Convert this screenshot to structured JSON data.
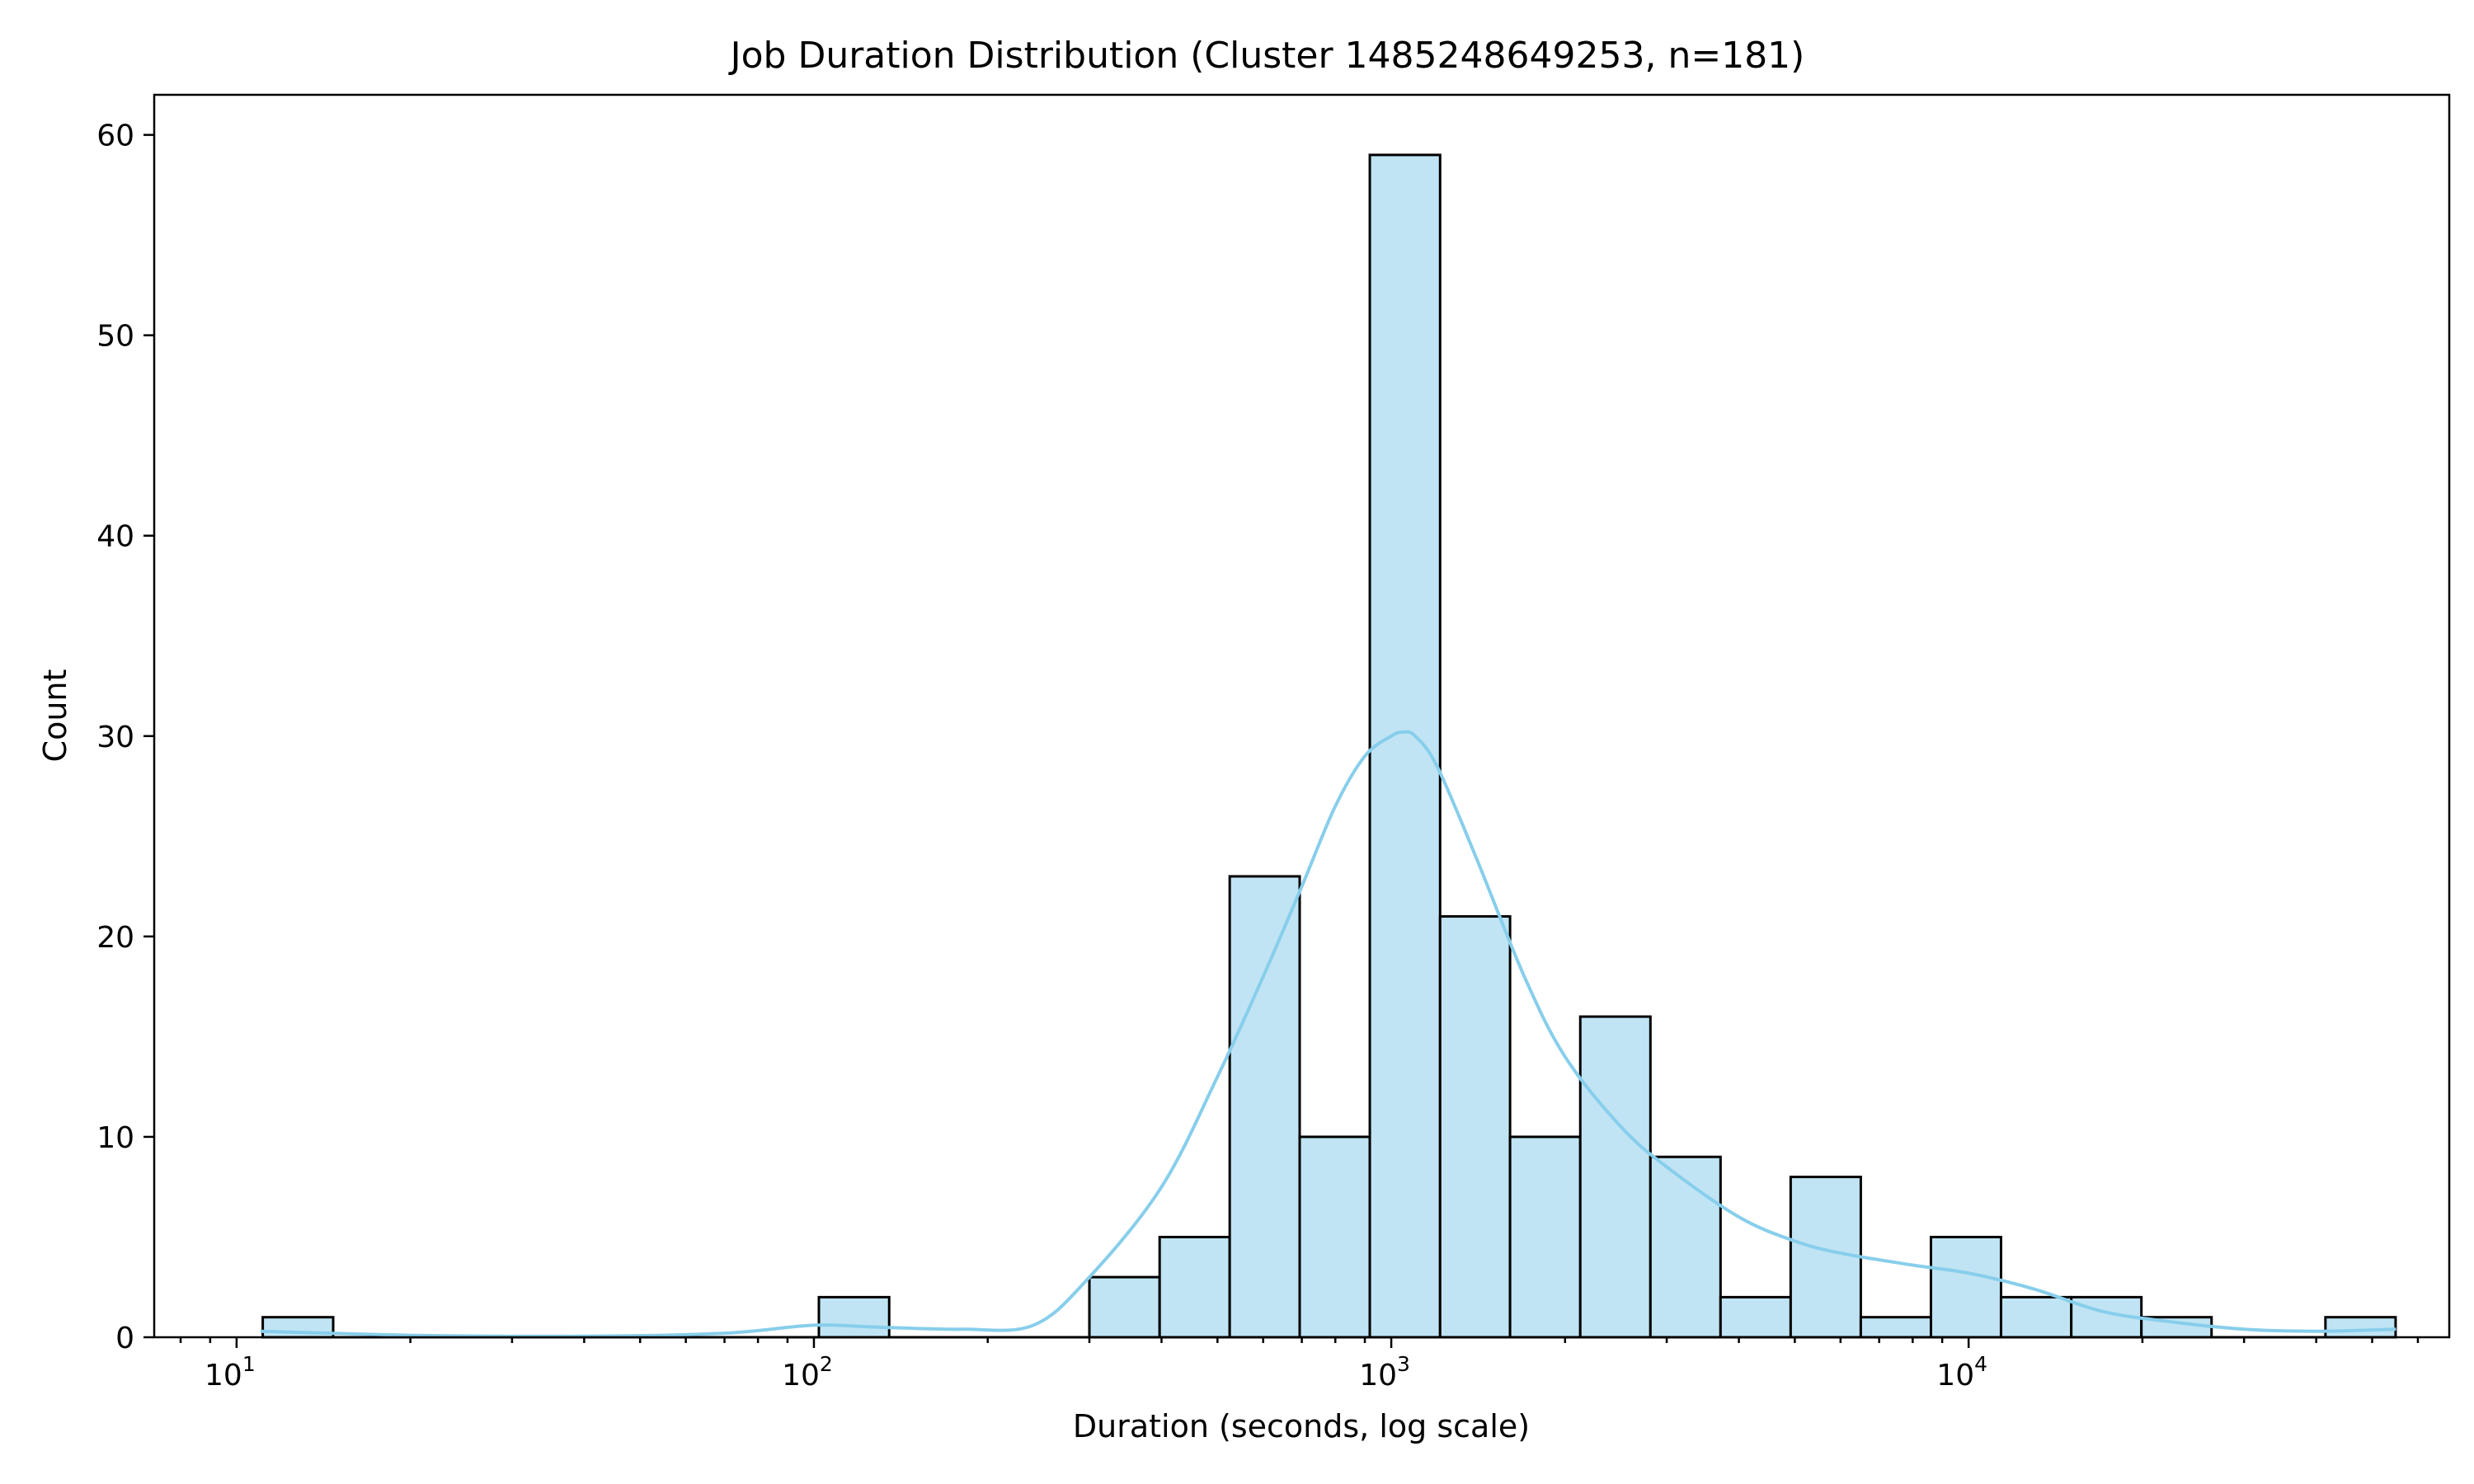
{
  "chart_data": {
    "type": "bar",
    "title": "Job Duration Distribution (Cluster 1485248649253, n=181)",
    "xlabel": "Duration (seconds, log scale)",
    "ylabel": "Count",
    "x_scale": "log",
    "xlim": [
      7.2,
      68000
    ],
    "ylim": [
      0,
      62
    ],
    "grid": false,
    "legend": "none",
    "x_ticks": [
      {
        "value": 10,
        "base": "10",
        "exp": "1"
      },
      {
        "value": 100,
        "base": "10",
        "exp": "2"
      },
      {
        "value": 1000,
        "base": "10",
        "exp": "3"
      },
      {
        "value": 10000,
        "base": "10",
        "exp": "4"
      }
    ],
    "y_ticks": [
      0,
      10,
      20,
      30,
      40,
      50,
      60
    ],
    "bins": [
      {
        "start": 11.1,
        "end": 14.7,
        "count": 1
      },
      {
        "start": 102,
        "end": 135,
        "count": 2
      },
      {
        "start": 300,
        "end": 397,
        "count": 3
      },
      {
        "start": 397,
        "end": 525,
        "count": 5
      },
      {
        "start": 525,
        "end": 694,
        "count": 23
      },
      {
        "start": 694,
        "end": 918,
        "count": 10
      },
      {
        "start": 918,
        "end": 1215,
        "count": 59
      },
      {
        "start": 1215,
        "end": 1606,
        "count": 21
      },
      {
        "start": 1606,
        "end": 2125,
        "count": 10
      },
      {
        "start": 2125,
        "end": 2811,
        "count": 16
      },
      {
        "start": 2811,
        "end": 3718,
        "count": 9
      },
      {
        "start": 3718,
        "end": 4918,
        "count": 2
      },
      {
        "start": 4918,
        "end": 6505,
        "count": 8
      },
      {
        "start": 6505,
        "end": 8605,
        "count": 1
      },
      {
        "start": 8605,
        "end": 11380,
        "count": 5
      },
      {
        "start": 11380,
        "end": 15060,
        "count": 2
      },
      {
        "start": 15060,
        "end": 19920,
        "count": 2
      },
      {
        "start": 19920,
        "end": 26350,
        "count": 1
      },
      {
        "start": 41500,
        "end": 54900,
        "count": 1
      }
    ],
    "kde": {
      "color": "#87ceeb",
      "x": [
        11,
        20,
        40,
        70,
        100,
        130,
        180,
        240,
        300,
        400,
        500,
        600,
        700,
        800,
        900,
        1000,
        1050,
        1100,
        1200,
        1400,
        1700,
        2000,
        2500,
        3000,
        4000,
        5000,
        6000,
        8000,
        10000,
        13000,
        17000,
        22000,
        30000,
        40000,
        55000
      ],
      "y": [
        0.3,
        0.1,
        0.05,
        0.2,
        0.6,
        0.5,
        0.4,
        0.6,
        3.0,
        7.5,
        13.0,
        18.0,
        22.5,
        26.5,
        29.0,
        30.0,
        30.2,
        30.0,
        28.5,
        24.0,
        18.0,
        14.0,
        10.5,
        8.5,
        6.0,
        4.8,
        4.2,
        3.6,
        3.2,
        2.4,
        1.3,
        0.8,
        0.4,
        0.3,
        0.4
      ]
    },
    "colors": {
      "bar_fill": "#c0e4f4",
      "bar_edge": "#000000",
      "kde_line": "#87ceeb"
    }
  }
}
